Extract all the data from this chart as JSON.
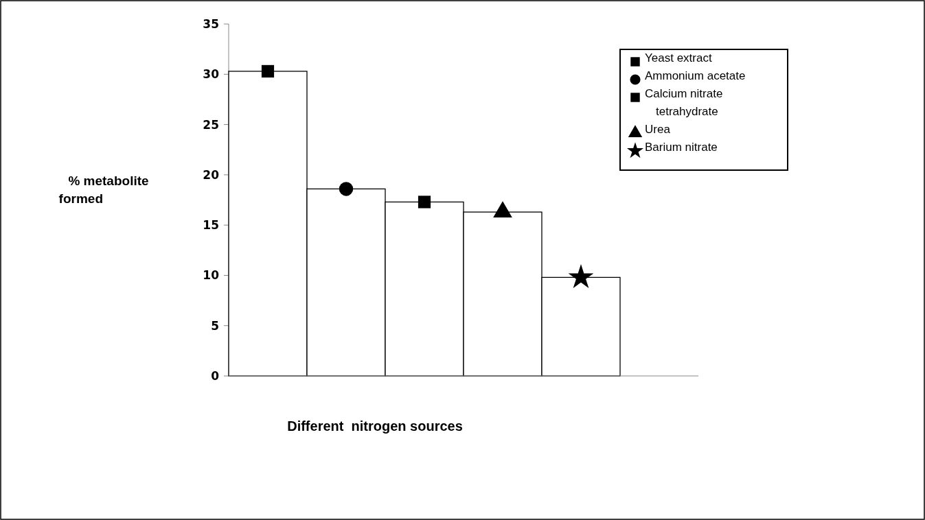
{
  "chart_data": {
    "type": "bar",
    "xlabel": "Different  nitrogen sources",
    "ylabel": "% metabolite formed",
    "categories": [
      null,
      null,
      null,
      null,
      null,
      null
    ],
    "ylim": [
      0,
      35
    ],
    "yticks": [
      0,
      5,
      10,
      15,
      20,
      25,
      30,
      35
    ],
    "grid": false,
    "legend": "top right",
    "series": [
      {
        "color": "#ffffff",
        "values": [
          30.3,
          18.6,
          17.3,
          16.3,
          9.8,
          null
        ]
      },
      {
        "type": "scatter",
        "name": "Yeast extract",
        "color": "#000000",
        "marker": "square",
        "values": [
          30.3,
          null,
          null,
          null,
          null,
          null
        ]
      },
      {
        "type": "scatter",
        "name": "Ammonium acetate",
        "color": "#000000",
        "marker": "circle",
        "values": [
          null,
          18.6,
          null,
          null,
          null,
          null
        ]
      },
      {
        "type": "scatter",
        "name": "Calcium nitrate tetrahydrate",
        "color": "#000000",
        "marker": "square",
        "values": [
          null,
          null,
          17.3,
          null,
          null,
          null
        ]
      },
      {
        "type": "scatter",
        "name": "Urea",
        "color": "#000000",
        "marker": "triangle",
        "values": [
          null,
          null,
          null,
          16.3,
          null,
          null
        ]
      },
      {
        "type": "scatter",
        "name": "Barium nitrate",
        "color": "#000000",
        "marker": "star",
        "values": [
          null,
          null,
          null,
          null,
          9.8,
          null
        ]
      }
    ]
  }
}
